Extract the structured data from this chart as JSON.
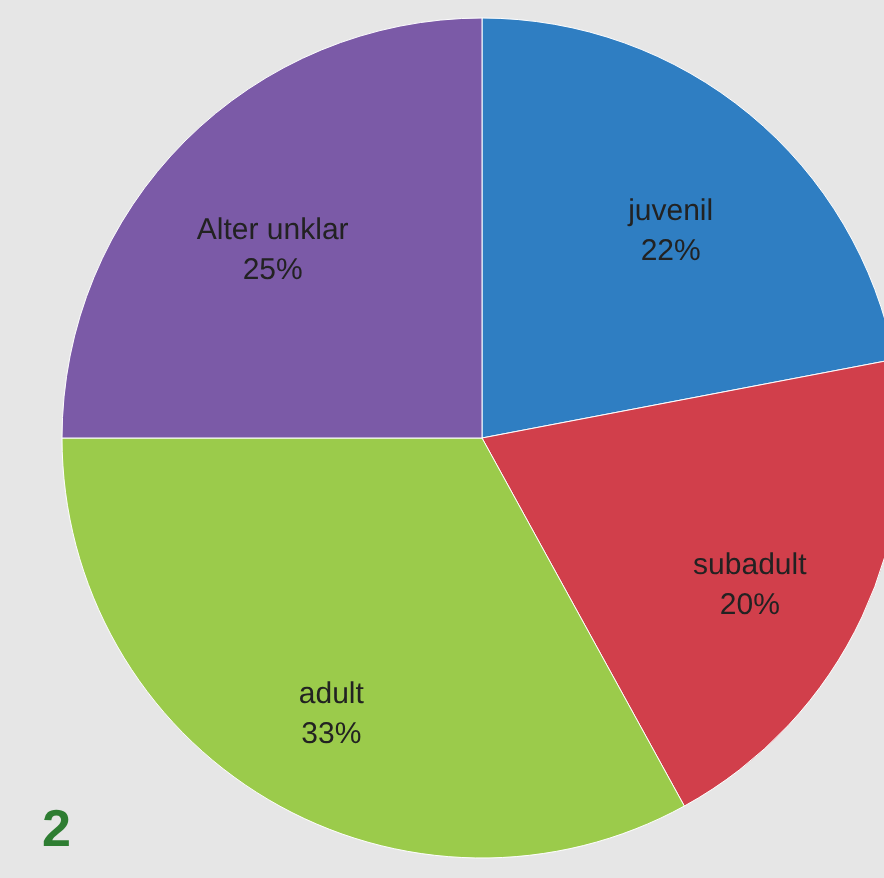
{
  "chart_data": {
    "type": "pie",
    "categories": [
      "juvenil",
      "subadult",
      "adult",
      "Alter unklar"
    ],
    "values": [
      22,
      20,
      33,
      25
    ],
    "colors": [
      "#2f7ec2",
      "#d13f4b",
      "#9bcb4b",
      "#7b5aa7"
    ],
    "value_labels": [
      "22%",
      "20%",
      "33%",
      "25%"
    ],
    "legend": false,
    "annotations": [
      "2"
    ]
  }
}
